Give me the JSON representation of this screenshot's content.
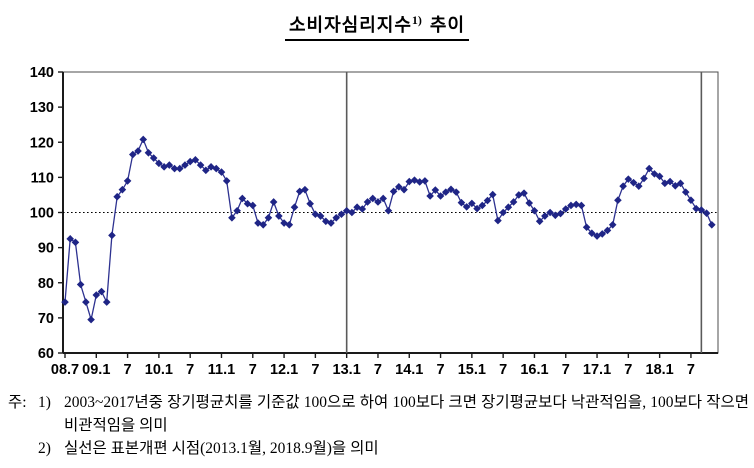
{
  "title": {
    "main": "소비자심리지수",
    "sup": "1)",
    "suffix": "추이"
  },
  "chart_data": {
    "type": "line",
    "series_name": "소비자심리지수",
    "x_unit": "month",
    "x_tick_every": 6,
    "x_tick_labels": [
      "08.7",
      "09.1",
      "7",
      "10.1",
      "7",
      "11.1",
      "7",
      "12.1",
      "7",
      "13.1",
      "7",
      "14.1",
      "7",
      "15.1",
      "7",
      "16.1",
      "7",
      "17.1",
      "7",
      "18.1",
      "7"
    ],
    "ylim": [
      60,
      140
    ],
    "y_ticks": [
      60,
      70,
      80,
      90,
      100,
      110,
      120,
      130,
      140
    ],
    "baseline": 100,
    "grid": "off",
    "legend": "none",
    "vlines": [
      {
        "month": "2013.1",
        "index": 54
      },
      {
        "month": "2018.9",
        "index": 122
      }
    ],
    "values": [
      74.5,
      92.5,
      91.5,
      79.5,
      74.5,
      69.5,
      76.5,
      77.5,
      74.5,
      93.5,
      104.5,
      106.5,
      109,
      116.5,
      117.5,
      120.8,
      117,
      115.5,
      114,
      113,
      113.5,
      112.5,
      112.5,
      113.5,
      114.5,
      115,
      113.5,
      112,
      113,
      112.5,
      111.5,
      109,
      98.5,
      100.5,
      104,
      102.5,
      102,
      97,
      96.5,
      98.5,
      103,
      99,
      97,
      96.5,
      101.5,
      106,
      106.5,
      102.5,
      99.5,
      99,
      97.5,
      97,
      98.5,
      99.5,
      100.5,
      100,
      101.5,
      101,
      103,
      104,
      103,
      104,
      100.5,
      106,
      107.3,
      106.5,
      108.8,
      109.2,
      108.7,
      109,
      104.7,
      106.4,
      104.7,
      105.8,
      106.6,
      105.8,
      102.8,
      101.6,
      102.6,
      101.1,
      102,
      103.4,
      105.1,
      97.7,
      100,
      101.5,
      103,
      105,
      105.5,
      102.7,
      100.5,
      97.5,
      99,
      100,
      99.2,
      99.7,
      101,
      102,
      102.3,
      102,
      95.8,
      94.1,
      93.3,
      93.9,
      94.9,
      96.5,
      103.5,
      107.5,
      109.5,
      108.5,
      107.5,
      109.7,
      112.5,
      111,
      110.3,
      108.3,
      108.8,
      107.6,
      108.3,
      105.8,
      103.5,
      101.1,
      100.7,
      99.8,
      96.5
    ],
    "colors": {
      "series": "#1f2586",
      "series_line": "#2d3190",
      "baseline": "#000000",
      "vline": "#5a5a5a",
      "axis": "#1a1a1a",
      "border": "#4d4d4d"
    }
  },
  "notes": {
    "label": "주:",
    "items": [
      {
        "marker": "1)",
        "text": "2003~2017년중 장기평균치를 기준값 100으로 하여 100보다 크면 장기평균보다 낙관적임을, 100보다 작으면 비관적임을 의미"
      },
      {
        "marker": "2)",
        "text": "실선은 표본개편 시점(2013.1월, 2018.9월)을 의미"
      }
    ]
  }
}
